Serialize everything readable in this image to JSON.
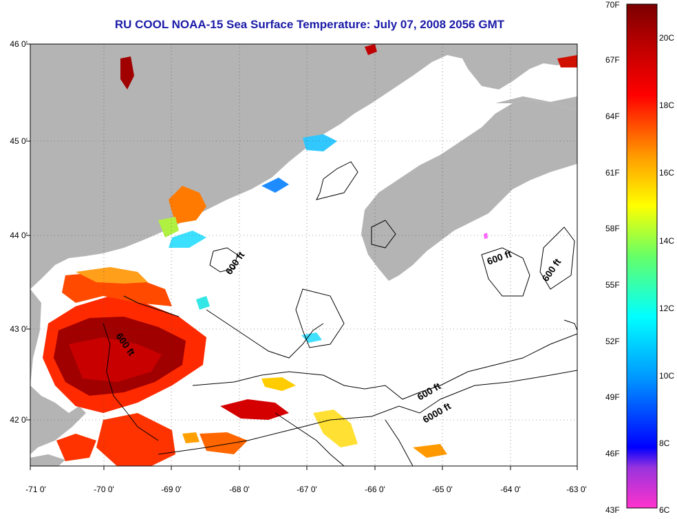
{
  "title": "RU COOL  NOAA-15  Sea Surface Temperature:  July 07, 2008 2056 GMT",
  "map": {
    "lat_labels": [
      "46 0'",
      "45 0'",
      "44 0'",
      "43 0'",
      "42 0'"
    ],
    "lon_labels": [
      "-71 0'",
      "-70 0'",
      "-69 0'",
      "-68 0'",
      "-67 0'",
      "-66 0'",
      "-65 0'",
      "-64 0'",
      "-63 0'"
    ],
    "lat_range": [
      41.5,
      46.0
    ],
    "lon_range": [
      -71.0,
      -63.0
    ],
    "land_color": "#b4b4b4",
    "contour_labels": [
      "600 ft",
      "600 ft",
      "600 ft",
      "600 ft",
      "6000 ft",
      "600 ft"
    ]
  },
  "colorbar": {
    "fahrenheit_labels": [
      "70F",
      "67F",
      "64F",
      "61F",
      "58F",
      "55F",
      "52F",
      "49F",
      "46F",
      "43F"
    ],
    "celsius_labels": [
      "20C",
      "18C",
      "16C",
      "14C",
      "12C",
      "10C",
      "8C",
      "6C"
    ],
    "stops": [
      "#ff33cc",
      "#7a2fd1",
      "#0000ff",
      "#00a0ff",
      "#00ffff",
      "#7fff7f",
      "#ffff00",
      "#ff9900",
      "#ff0000",
      "#b00000",
      "#800000"
    ]
  }
}
